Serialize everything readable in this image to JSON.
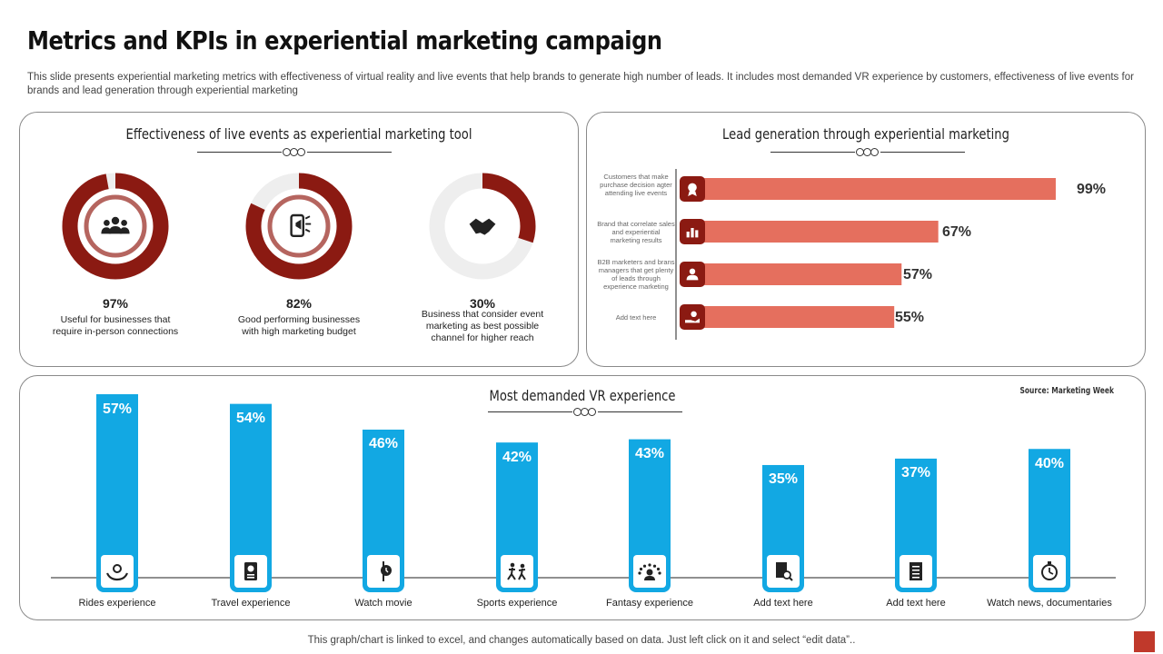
{
  "page": {
    "title": "Metrics and KPIs in experiential marketing campaign",
    "subtitle": "This slide presents experiential marketing metrics with effectiveness of virtual reality and live events that help brands to generate high number of leads. It includes most demanded VR experience by customers, effectiveness of live events for brands and lead generation through experiential marketing",
    "footer": "This graph/chart is linked to excel,  and changes automatically based on data. Just left click on it and select “edit data”..",
    "colors": {
      "dark_red": "#8B1A12",
      "coral": "#E56F5E",
      "blue": "#12A8E3",
      "gray_track": "#EEEEEE"
    }
  },
  "effectiveness": {
    "title": "Effectiveness  of live events  as experiential  marketing  tool",
    "donuts": [
      {
        "pct_label": "97%",
        "value": 97,
        "desc": "Useful for businesses that require in-person connections",
        "icon": "group-icon"
      },
      {
        "pct_label": "82%",
        "value": 82,
        "desc": "Good performing businesses with high marketing budget",
        "icon": "mobile-marketing-icon"
      },
      {
        "pct_label": "30%",
        "value": 30,
        "desc": "Business that consider event marketing as best possible channel for higher reach",
        "icon": "handshake-icon"
      }
    ]
  },
  "lead": {
    "title": "Lead generation through  experiential  marketing"
  },
  "vr": {
    "title": "Most demanded  VR experience",
    "source": "Source:  Marketing  Week"
  },
  "chart_data": [
    {
      "type": "pie",
      "title": "Effectiveness  of live events  as experiential  marketing  tool",
      "categories": [
        "Useful for businesses that require in-person connections",
        "Good performing businesses with high marketing budget",
        "Business that consider event marketing as best possible channel for higher reach"
      ],
      "values": [
        97,
        82,
        30
      ],
      "value_labels": [
        "97%",
        "82%",
        "30%"
      ]
    },
    {
      "type": "bar",
      "orientation": "horizontal",
      "title": "Lead generation through  experiential  marketing",
      "categories": [
        "Customers that make purchase decision agter attending live events",
        "Brand that correlate sales and experiential marketing results",
        "B2B marketers and brans managers that get plenty of leads through experience marketing",
        "Add text here"
      ],
      "values": [
        99,
        67,
        57,
        55
      ],
      "value_labels": [
        "99%",
        "67%",
        "57%",
        "55%"
      ],
      "icons": [
        "award-icon",
        "chart-icon",
        "leads-icon",
        "hand-money-icon"
      ],
      "xlim": [
        0,
        100
      ]
    },
    {
      "type": "bar",
      "title": "Most demanded  VR experience",
      "categories": [
        "Rides experience",
        "Travel experience",
        "Watch movie",
        "Sports experience",
        "Fantasy experience",
        "Add text here",
        "Add text here",
        "Watch news, documentaries"
      ],
      "values": [
        57,
        54,
        46,
        42,
        43,
        35,
        37,
        40
      ],
      "value_labels": [
        "57%",
        "54%",
        "46%",
        "42%",
        "43%",
        "35%",
        "37%",
        "40%"
      ],
      "icons": [
        "hands-icon",
        "passport-icon",
        "sign-icon",
        "sports-icon",
        "stars-person-icon",
        "document-search-icon",
        "document-icon",
        "stopwatch-icon"
      ],
      "ylim": [
        0,
        60
      ]
    }
  ]
}
